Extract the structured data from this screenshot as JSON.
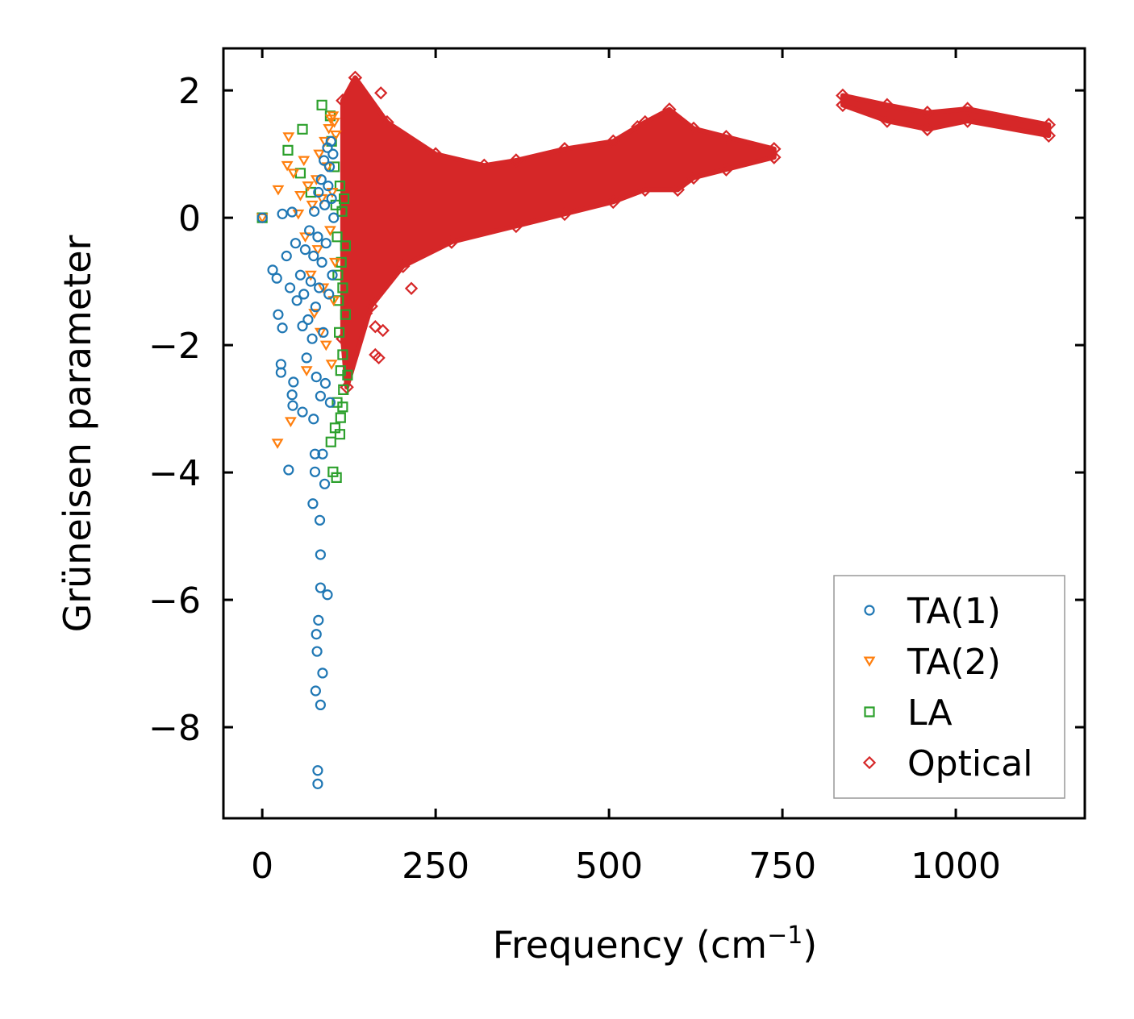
{
  "chart_data": {
    "type": "scatter",
    "title": "",
    "xlabel": "Frequency (cm",
    "xlabel_sup": "−1",
    "xlabel_close": ")",
    "ylabel": "Grüneisen parameter",
    "xlim": [
      -56,
      1186
    ],
    "ylim": [
      -9.43,
      2.66
    ],
    "xticks": [
      0,
      250,
      500,
      750,
      1000
    ],
    "xtick_labels": [
      "0",
      "250",
      "500",
      "750",
      "1000"
    ],
    "yticks": [
      2,
      0,
      -2,
      -4,
      -6,
      -8
    ],
    "ytick_labels": [
      "2",
      "0",
      "−2",
      "−4",
      "−6",
      "−8"
    ],
    "grid": false,
    "legend_position": "bottom-right",
    "series": [
      {
        "name": "TA(1)",
        "marker": "circle",
        "color": "#1f77b4",
        "points": [
          [
            0,
            0
          ],
          [
            15,
            -0.82
          ],
          [
            21,
            -0.95
          ],
          [
            23,
            -1.52
          ],
          [
            29,
            -1.73
          ],
          [
            27,
            -2.3
          ],
          [
            27,
            -2.43
          ],
          [
            38,
            -3.96
          ],
          [
            45,
            -2.58
          ],
          [
            43,
            -2.78
          ],
          [
            44,
            -2.95
          ],
          [
            58,
            -3.05
          ],
          [
            74,
            -3.16
          ],
          [
            76,
            -3.71
          ],
          [
            76,
            -3.99
          ],
          [
            87,
            -3.71
          ],
          [
            90,
            -4.18
          ],
          [
            73,
            -4.49
          ],
          [
            83,
            -4.75
          ],
          [
            84,
            -5.29
          ],
          [
            84,
            -5.81
          ],
          [
            94,
            -5.92
          ],
          [
            81,
            -6.32
          ],
          [
            78,
            -6.54
          ],
          [
            79,
            -6.81
          ],
          [
            87,
            -7.15
          ],
          [
            77,
            -7.43
          ],
          [
            84,
            -7.65
          ],
          [
            80,
            -8.68
          ],
          [
            80,
            -8.89
          ],
          [
            29,
            0.06
          ],
          [
            43,
            0.09
          ],
          [
            35,
            -0.6
          ],
          [
            40,
            -1.1
          ],
          [
            48,
            -0.4
          ],
          [
            50,
            -1.3
          ],
          [
            55,
            -0.9
          ],
          [
            58,
            -1.7
          ],
          [
            60,
            -1.2
          ],
          [
            62,
            -0.5
          ],
          [
            64,
            -2.2
          ],
          [
            66,
            -1.6
          ],
          [
            68,
            -0.2
          ],
          [
            70,
            -1.0
          ],
          [
            72,
            -1.9
          ],
          [
            74,
            -0.6
          ],
          [
            75,
            0.1
          ],
          [
            77,
            -1.4
          ],
          [
            78,
            -2.5
          ],
          [
            80,
            -0.3
          ],
          [
            81,
            0.4
          ],
          [
            82,
            -1.1
          ],
          [
            84,
            -2.8
          ],
          [
            85,
            0.6
          ],
          [
            86,
            -0.7
          ],
          [
            88,
            -1.8
          ],
          [
            89,
            0.9
          ],
          [
            90,
            0.2
          ],
          [
            91,
            -2.6
          ],
          [
            92,
            -0.4
          ],
          [
            94,
            1.1
          ],
          [
            95,
            0.5
          ],
          [
            96,
            -1.2
          ],
          [
            97,
            0.8
          ],
          [
            98,
            -2.9
          ],
          [
            99,
            1.2
          ],
          [
            100,
            0.3
          ],
          [
            101,
            -0.9
          ],
          [
            102,
            1.0
          ],
          [
            103,
            0.0
          ]
        ]
      },
      {
        "name": "TA(2)",
        "marker": "triangle-down",
        "color": "#ff7f0e",
        "points": [
          [
            0,
            0
          ],
          [
            22,
            -3.54
          ],
          [
            41,
            -3.2
          ],
          [
            23,
            0.44
          ],
          [
            38,
            1.27
          ],
          [
            36,
            0.82
          ],
          [
            64,
            -2.4
          ],
          [
            52,
            0.06
          ],
          [
            45,
            0.7
          ],
          [
            55,
            0.35
          ],
          [
            60,
            0.9
          ],
          [
            62,
            -0.3
          ],
          [
            66,
            0.5
          ],
          [
            70,
            -0.9
          ],
          [
            72,
            0.2
          ],
          [
            75,
            -1.5
          ],
          [
            78,
            0.6
          ],
          [
            80,
            -0.5
          ],
          [
            82,
            1.0
          ],
          [
            84,
            -1.8
          ],
          [
            86,
            0.3
          ],
          [
            88,
            -1.1
          ],
          [
            90,
            1.2
          ],
          [
            92,
            -2.0
          ],
          [
            94,
            0.8
          ],
          [
            96,
            1.4
          ],
          [
            98,
            -0.2
          ],
          [
            99,
            1.55
          ],
          [
            100,
            -2.3
          ],
          [
            101,
            0.4
          ],
          [
            102,
            1.6
          ],
          [
            103,
            -1.3
          ],
          [
            104,
            1.5
          ],
          [
            105,
            -0.7
          ],
          [
            106,
            1.3
          ]
        ]
      },
      {
        "name": "LA",
        "marker": "square",
        "color": "#2ca02c",
        "points": [
          [
            0,
            0
          ],
          [
            37,
            1.06
          ],
          [
            58,
            1.39
          ],
          [
            86,
            1.77
          ],
          [
            107,
            -4.08
          ],
          [
            102,
            -3.99
          ],
          [
            99,
            -3.52
          ],
          [
            113,
            -3.14
          ],
          [
            116,
            -2.97
          ],
          [
            123,
            -2.47
          ],
          [
            116,
            -2.15
          ],
          [
            120,
            -1.52
          ],
          [
            120,
            -0.44
          ],
          [
            55,
            0.7
          ],
          [
            70,
            0.4
          ],
          [
            98,
            1.6
          ],
          [
            100,
            1.2
          ],
          [
            104,
            0.8
          ],
          [
            106,
            0.2
          ],
          [
            108,
            -0.3
          ],
          [
            109,
            -0.9
          ],
          [
            110,
            -1.3
          ],
          [
            111,
            -1.8
          ],
          [
            112,
            0.5
          ],
          [
            113,
            -2.4
          ],
          [
            114,
            -0.7
          ],
          [
            115,
            0.1
          ],
          [
            116,
            -1.1
          ],
          [
            117,
            -2.7
          ],
          [
            118,
            0.3
          ],
          [
            112,
            -3.4
          ],
          [
            105,
            -3.3
          ],
          [
            108,
            -2.9
          ]
        ]
      },
      {
        "name": "Optical",
        "marker": "diamond",
        "color": "#d62728",
        "band_upper": [
          [
            116,
            1.84
          ],
          [
            134,
            2.2
          ],
          [
            180,
            1.5
          ],
          [
            250,
            1.0
          ],
          [
            320,
            0.82
          ],
          [
            366,
            0.9
          ],
          [
            436,
            1.08
          ],
          [
            506,
            1.2
          ],
          [
            552,
            1.5
          ],
          [
            587,
            1.7
          ],
          [
            622,
            1.4
          ],
          [
            669,
            1.27
          ],
          [
            738,
            1.08
          ]
        ],
        "band_lower": [
          [
            738,
            0.95
          ],
          [
            669,
            0.76
          ],
          [
            622,
            0.63
          ],
          [
            599,
            0.44
          ],
          [
            552,
            0.44
          ],
          [
            506,
            0.25
          ],
          [
            436,
            0.06
          ],
          [
            366,
            -0.13
          ],
          [
            273,
            -0.38
          ],
          [
            203,
            -0.76
          ],
          [
            157,
            -1.39
          ],
          [
            122,
            -2.66
          ],
          [
            116,
            -1.9
          ]
        ],
        "band2_upper": [
          [
            837,
            1.92
          ],
          [
            901,
            1.77
          ],
          [
            959,
            1.65
          ],
          [
            1017,
            1.71
          ],
          [
            1134,
            1.46
          ]
        ],
        "band2_lower": [
          [
            1134,
            1.29
          ],
          [
            1017,
            1.52
          ],
          [
            959,
            1.39
          ],
          [
            901,
            1.52
          ],
          [
            837,
            1.77
          ]
        ],
        "points": [
          [
            171,
            1.96
          ],
          [
            541,
            1.43
          ],
          [
            163,
            -2.15
          ],
          [
            174,
            -1.77
          ],
          [
            215,
            -1.11
          ],
          [
            163,
            -1.71
          ],
          [
            168,
            -2.2
          ],
          [
            150,
            -1.5
          ]
        ]
      }
    ]
  }
}
